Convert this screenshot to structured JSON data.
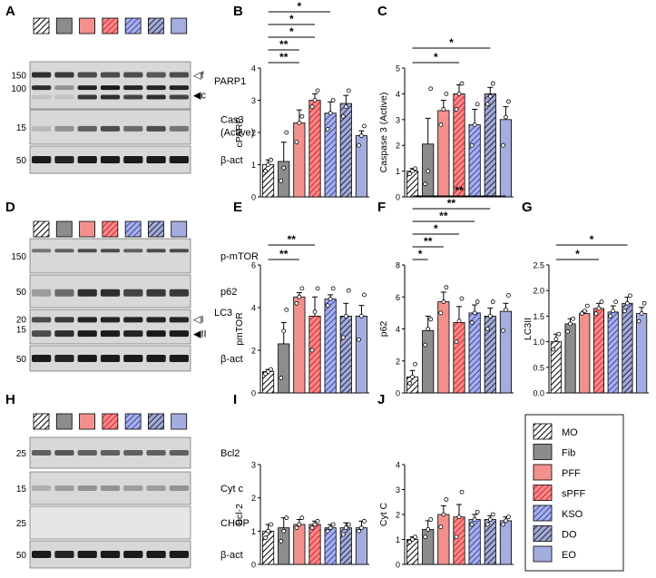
{
  "colors": {
    "MO": "#ffffff",
    "Fib": "#8c8c8c",
    "PFF": "#f08c84",
    "sPFF": "#f0747a",
    "KSO": "#9aa3dc",
    "DO": "#8c94b8",
    "EO": "#9aa3dc",
    "blot_bg": "#dcdcdc",
    "band": "#1a1a1a"
  },
  "groups": [
    "MO",
    "Fib",
    "PFF",
    "sPFF",
    "KSO",
    "DO",
    "EO"
  ],
  "legend": {
    "entries": [
      {
        "label": "MO",
        "key": "MO"
      },
      {
        "label": "Fib",
        "key": "Fib"
      },
      {
        "label": "PFF",
        "key": "PFF"
      },
      {
        "label": "sPFF",
        "key": "sPFF"
      },
      {
        "label": "KSO",
        "key": "KSO"
      },
      {
        "label": "DO",
        "key": "DO"
      },
      {
        "label": "EO",
        "key": "EO"
      }
    ]
  },
  "blots": [
    {
      "letter": "A",
      "rows": [
        {
          "name": "PARP1",
          "labels": [
            "PARP1"
          ],
          "markers": [
            "150",
            "100"
          ],
          "arrows": [
            "◁f",
            "◀c"
          ]
        },
        {
          "name": "Cas3 (Active)",
          "labels": [
            "Cas3",
            "(Active)"
          ],
          "markers": [
            "15"
          ],
          "arrows": []
        },
        {
          "name": "β-act",
          "labels": [
            "β-act"
          ],
          "markers": [
            "50"
          ],
          "arrows": []
        }
      ]
    },
    {
      "letter": "D",
      "rows": [
        {
          "name": "p-mTOR",
          "labels": [
            "p-mTOR"
          ],
          "markers": [
            "150"
          ],
          "arrows": []
        },
        {
          "name": "p62",
          "labels": [
            "p62"
          ],
          "markers": [
            "50"
          ],
          "arrows": []
        },
        {
          "name": "LC3",
          "labels": [
            "LC3"
          ],
          "markers": [
            "20",
            "15"
          ],
          "arrows": [
            "◁I",
            "◀II"
          ]
        },
        {
          "name": "β-act",
          "labels": [
            "β-act"
          ],
          "markers": [
            "50"
          ],
          "arrows": []
        }
      ]
    },
    {
      "letter": "H",
      "rows": [
        {
          "name": "Bcl2",
          "labels": [
            "Bcl2"
          ],
          "markers": [
            "25"
          ],
          "arrows": []
        },
        {
          "name": "Cyt c",
          "labels": [
            "Cyt c"
          ],
          "markers": [
            "15"
          ],
          "arrows": []
        },
        {
          "name": "CHOP",
          "labels": [
            "CHOP"
          ],
          "markers": [
            "25"
          ],
          "arrows": []
        },
        {
          "name": "β-act",
          "labels": [
            "β-act"
          ],
          "markers": [
            "50"
          ],
          "arrows": []
        }
      ]
    }
  ],
  "chart_data": [
    {
      "letter": "B",
      "type": "bar",
      "ylabel": "cPARP",
      "ylim": [
        0,
        4
      ],
      "yticks": [
        "0",
        "1",
        "2",
        "3",
        "4"
      ],
      "categories": [
        "MO",
        "Fib",
        "PFF",
        "sPFF",
        "KSO",
        "DO",
        "EO"
      ],
      "values": [
        1.0,
        1.1,
        2.3,
        3.0,
        2.6,
        2.9,
        1.9
      ],
      "errors": [
        0.15,
        0.6,
        0.4,
        0.2,
        0.35,
        0.25,
        0.15
      ],
      "points": [
        [
          0.8,
          1.0,
          1.15
        ],
        [
          0.5,
          0.9,
          2.0
        ],
        [
          1.7,
          2.3,
          2.5
        ],
        [
          2.8,
          3.0,
          3.3
        ],
        [
          2.1,
          2.6,
          3.0
        ],
        [
          2.5,
          2.8,
          3.3
        ],
        [
          1.6,
          1.9,
          2.2
        ]
      ],
      "brackets": [
        {
          "from": 0,
          "to": 5,
          "label": "**"
        },
        {
          "from": 0,
          "to": 4,
          "label": "*"
        },
        {
          "from": 0,
          "to": 3,
          "label": "*"
        },
        {
          "from": 0,
          "to": 3,
          "label": "*"
        },
        {
          "from": 0,
          "to": 2,
          "label": "**"
        },
        {
          "from": 0,
          "to": 2,
          "label": "**"
        }
      ]
    },
    {
      "letter": "C",
      "type": "bar",
      "ylabel": "Caspase 3 (Active)",
      "ylim": [
        0,
        5
      ],
      "yticks": [
        "0",
        "1",
        "2",
        "3",
        "4",
        "5"
      ],
      "categories": [
        "MO",
        "Fib",
        "PFF",
        "sPFF",
        "KSO",
        "DO",
        "EO"
      ],
      "values": [
        1.0,
        2.05,
        3.35,
        4.0,
        2.8,
        4.0,
        3.0
      ],
      "errors": [
        0.1,
        1.0,
        0.4,
        0.35,
        0.6,
        0.25,
        0.5
      ],
      "points": [
        [
          0.9,
          1.0,
          1.1
        ],
        [
          0.5,
          1.0,
          4.2
        ],
        [
          2.8,
          3.4,
          4.0
        ],
        [
          3.4,
          4.0,
          4.4
        ],
        [
          2.0,
          2.8,
          3.6
        ],
        [
          3.6,
          3.9,
          4.4
        ],
        [
          2.0,
          3.1,
          3.7
        ]
      ],
      "brackets": [
        {
          "from": 0,
          "to": 5,
          "label": "*"
        },
        {
          "from": 0,
          "to": 3,
          "label": "*"
        }
      ]
    },
    {
      "letter": "E",
      "type": "bar",
      "ylabel": "pmTOR",
      "ylim": [
        0,
        6
      ],
      "yticks": [
        "0",
        "2",
        "4",
        "6"
      ],
      "categories": [
        "MO",
        "Fib",
        "PFF",
        "sPFF",
        "KSO",
        "DO",
        "EO"
      ],
      "values": [
        1.0,
        2.3,
        4.5,
        3.6,
        4.4,
        3.6,
        3.6
      ],
      "errors": [
        0.1,
        1.0,
        0.2,
        0.9,
        0.2,
        0.6,
        0.5
      ],
      "points": [
        [
          0.9,
          1.0,
          1.1
        ],
        [
          0.7,
          2.9,
          3.9
        ],
        [
          4.2,
          4.5,
          4.9
        ],
        [
          2.0,
          3.8,
          4.9
        ],
        [
          4.1,
          4.4,
          4.9
        ],
        [
          2.6,
          3.6,
          4.8
        ],
        [
          2.5,
          3.6,
          4.6
        ]
      ],
      "brackets": [
        {
          "from": 0,
          "to": 3,
          "label": "**"
        },
        {
          "from": 0,
          "to": 2,
          "label": "**"
        }
      ]
    },
    {
      "letter": "F",
      "type": "bar",
      "ylabel": "p62",
      "ylim": [
        0,
        8
      ],
      "yticks": [
        "0",
        "2",
        "4",
        "6",
        "8"
      ],
      "categories": [
        "MO",
        "Fib",
        "PFF",
        "sPFF",
        "KSO",
        "DO",
        "EO"
      ],
      "values": [
        1.0,
        3.9,
        5.7,
        4.4,
        5.0,
        4.8,
        5.1
      ],
      "errors": [
        0.4,
        0.9,
        0.6,
        1.0,
        0.5,
        0.5,
        0.5
      ],
      "points": [
        [
          0.6,
          1.0,
          1.8
        ],
        [
          3.0,
          4.0,
          4.6
        ],
        [
          5.0,
          5.7,
          6.6
        ],
        [
          3.2,
          4.5,
          5.9
        ],
        [
          4.4,
          5.0,
          5.7
        ],
        [
          4.0,
          4.8,
          5.7
        ],
        [
          3.9,
          5.2,
          6.1
        ]
      ],
      "brackets": [
        {
          "from": 0,
          "to": 6,
          "label": "**"
        },
        {
          "from": 0,
          "to": 5,
          "label": "**"
        },
        {
          "from": 0,
          "to": 4,
          "label": "**"
        },
        {
          "from": 0,
          "to": 3,
          "label": "*"
        },
        {
          "from": 0,
          "to": 2,
          "label": "**"
        },
        {
          "from": 0,
          "to": 1,
          "label": "*"
        }
      ]
    },
    {
      "letter": "G",
      "type": "bar",
      "ylabel": "LC3II",
      "ylim": [
        0,
        2.5
      ],
      "yticks": [
        "0.0",
        "0.5",
        "1.0",
        "1.5",
        "2.0",
        "2.5"
      ],
      "categories": [
        "MO",
        "Fib",
        "PFF",
        "sPFF",
        "KSO",
        "DO",
        "EO"
      ],
      "values": [
        1.0,
        1.35,
        1.55,
        1.65,
        1.58,
        1.75,
        1.55
      ],
      "errors": [
        0.15,
        0.1,
        0.05,
        0.1,
        0.12,
        0.12,
        0.12
      ],
      "points": [
        [
          0.85,
          1.05,
          1.15
        ],
        [
          1.2,
          1.35,
          1.45
        ],
        [
          1.55,
          1.6,
          1.7
        ],
        [
          1.55,
          1.65,
          1.78
        ],
        [
          1.5,
          1.6,
          1.78
        ],
        [
          1.6,
          1.75,
          1.9
        ],
        [
          1.4,
          1.55,
          1.75
        ]
      ],
      "brackets": [
        {
          "from": 0,
          "to": 5,
          "label": "*"
        },
        {
          "from": 0,
          "to": 3,
          "label": "*"
        }
      ]
    },
    {
      "letter": "I",
      "type": "bar",
      "ylabel": "Bcl-2",
      "ylim": [
        0,
        3
      ],
      "yticks": [
        "0",
        "1",
        "2",
        "3"
      ],
      "categories": [
        "MO",
        "Fib",
        "PFF",
        "sPFF",
        "KSO",
        "DO",
        "EO"
      ],
      "values": [
        1.0,
        1.1,
        1.2,
        1.2,
        1.1,
        1.1,
        1.1
      ],
      "errors": [
        0.2,
        0.3,
        0.15,
        0.1,
        0.1,
        0.15,
        0.2
      ],
      "points": [
        [
          0.8,
          1.0,
          1.2
        ],
        [
          0.7,
          1.0,
          1.4
        ],
        [
          1.1,
          1.2,
          1.4
        ],
        [
          1.1,
          1.2,
          1.3
        ],
        [
          1.0,
          1.1,
          1.2
        ],
        [
          0.9,
          1.1,
          1.2
        ],
        [
          1.0,
          1.1,
          1.3
        ]
      ],
      "brackets": []
    },
    {
      "letter": "J",
      "type": "bar",
      "ylabel": "Cyt C",
      "ylim": [
        0,
        4
      ],
      "yticks": [
        "0",
        "1",
        "2",
        "3",
        "4"
      ],
      "categories": [
        "MO",
        "Fib",
        "PFF",
        "sPFF",
        "KSO",
        "DO",
        "EO"
      ],
      "values": [
        1.0,
        1.4,
        2.0,
        1.9,
        1.8,
        1.8,
        1.75
      ],
      "errors": [
        0.1,
        0.35,
        0.35,
        0.5,
        0.2,
        0.15,
        0.15
      ],
      "points": [
        [
          0.9,
          1.0,
          1.1
        ],
        [
          1.1,
          1.4,
          1.8
        ],
        [
          1.5,
          2.0,
          2.6
        ],
        [
          1.1,
          1.9,
          2.9
        ],
        [
          1.6,
          1.8,
          2.1
        ],
        [
          1.6,
          1.8,
          2.0
        ],
        [
          1.6,
          1.75,
          1.9
        ]
      ],
      "brackets": []
    }
  ]
}
